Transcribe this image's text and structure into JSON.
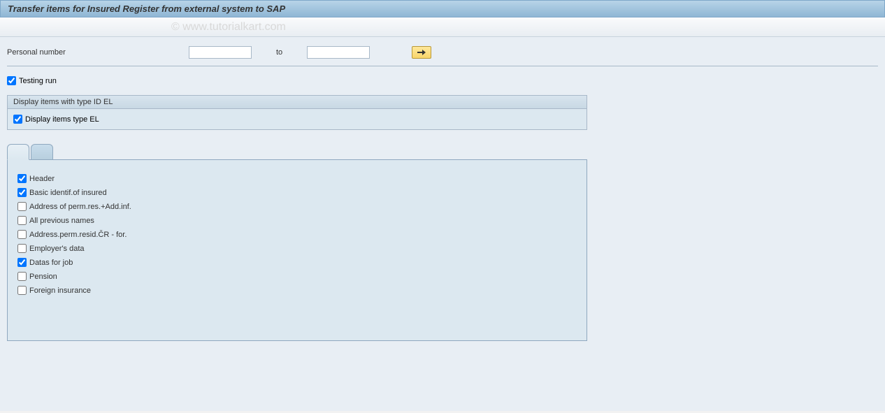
{
  "title": "Transfer items for Insured Register from external system to SAP",
  "watermark": "© www.tutorialkart.com",
  "selection": {
    "label": "Personal number",
    "from_value": "",
    "to_label": "to",
    "to_value": ""
  },
  "testing_run": {
    "label": "Testing run",
    "checked": true
  },
  "group": {
    "title": "Display items with type ID EL",
    "item": {
      "label": "Display items type EL",
      "checked": true
    }
  },
  "tab_panel": {
    "items": [
      {
        "label": "Header",
        "checked": true
      },
      {
        "label": "Basic identif.of insured",
        "checked": true
      },
      {
        "label": "Address of perm.res.+Add.inf.",
        "checked": false
      },
      {
        "label": "All previous names",
        "checked": false
      },
      {
        "label": "Address.perm.resid.ČR - for.",
        "checked": false
      },
      {
        "label": "Employer's data",
        "checked": false
      },
      {
        "label": "Datas for job",
        "checked": true
      },
      {
        "label": "Pension",
        "checked": false
      },
      {
        "label": "Foreign insurance",
        "checked": false
      }
    ]
  },
  "colors": {
    "title_bg_top": "#b8d4e8",
    "title_bg_bottom": "#8fb6d4",
    "content_bg": "#e8eef4",
    "group_bg": "#dce8f0",
    "border": "#a8b8c8",
    "arrow_btn_top": "#ffe89a",
    "arrow_btn_bottom": "#f8d56a"
  }
}
